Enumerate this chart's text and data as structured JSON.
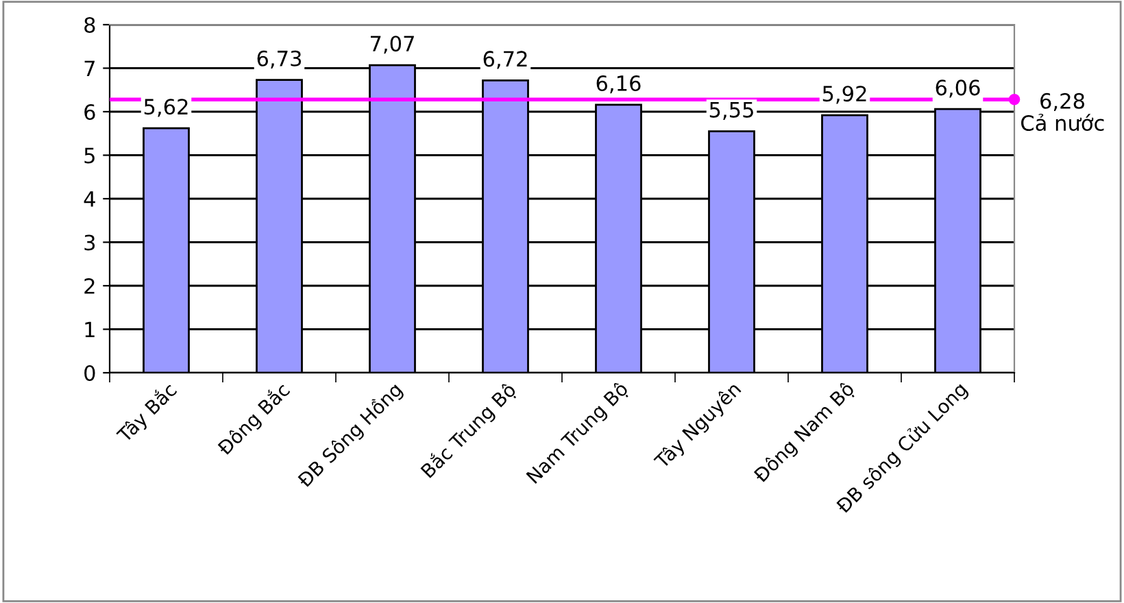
{
  "chart_data": {
    "type": "bar",
    "categories": [
      "Tây Bắc",
      "Đông Bắc",
      "ĐB Sông Hồng",
      "Bắc Trung Bộ",
      "Nam Trung Bộ",
      "Tây Nguyên",
      "Đông Nam Bộ",
      "ĐB sông Cửu Long"
    ],
    "values": [
      5.62,
      6.73,
      7.07,
      6.72,
      6.16,
      5.55,
      5.92,
      6.06
    ],
    "value_labels": [
      "5,62",
      "6,73",
      "7,07",
      "6,72",
      "6,16",
      "5,55",
      "5,92",
      "6,06"
    ],
    "color": "#9999ff",
    "ylim": [
      0,
      8
    ],
    "yticks": [
      0,
      1,
      2,
      3,
      4,
      5,
      6,
      7,
      8
    ],
    "grid": "y",
    "ref_lines": [
      {
        "axis": "y",
        "value": 6.28,
        "label": "Cả nước",
        "color": "#ff00ff"
      }
    ],
    "annotations": [
      "6,28"
    ]
  }
}
